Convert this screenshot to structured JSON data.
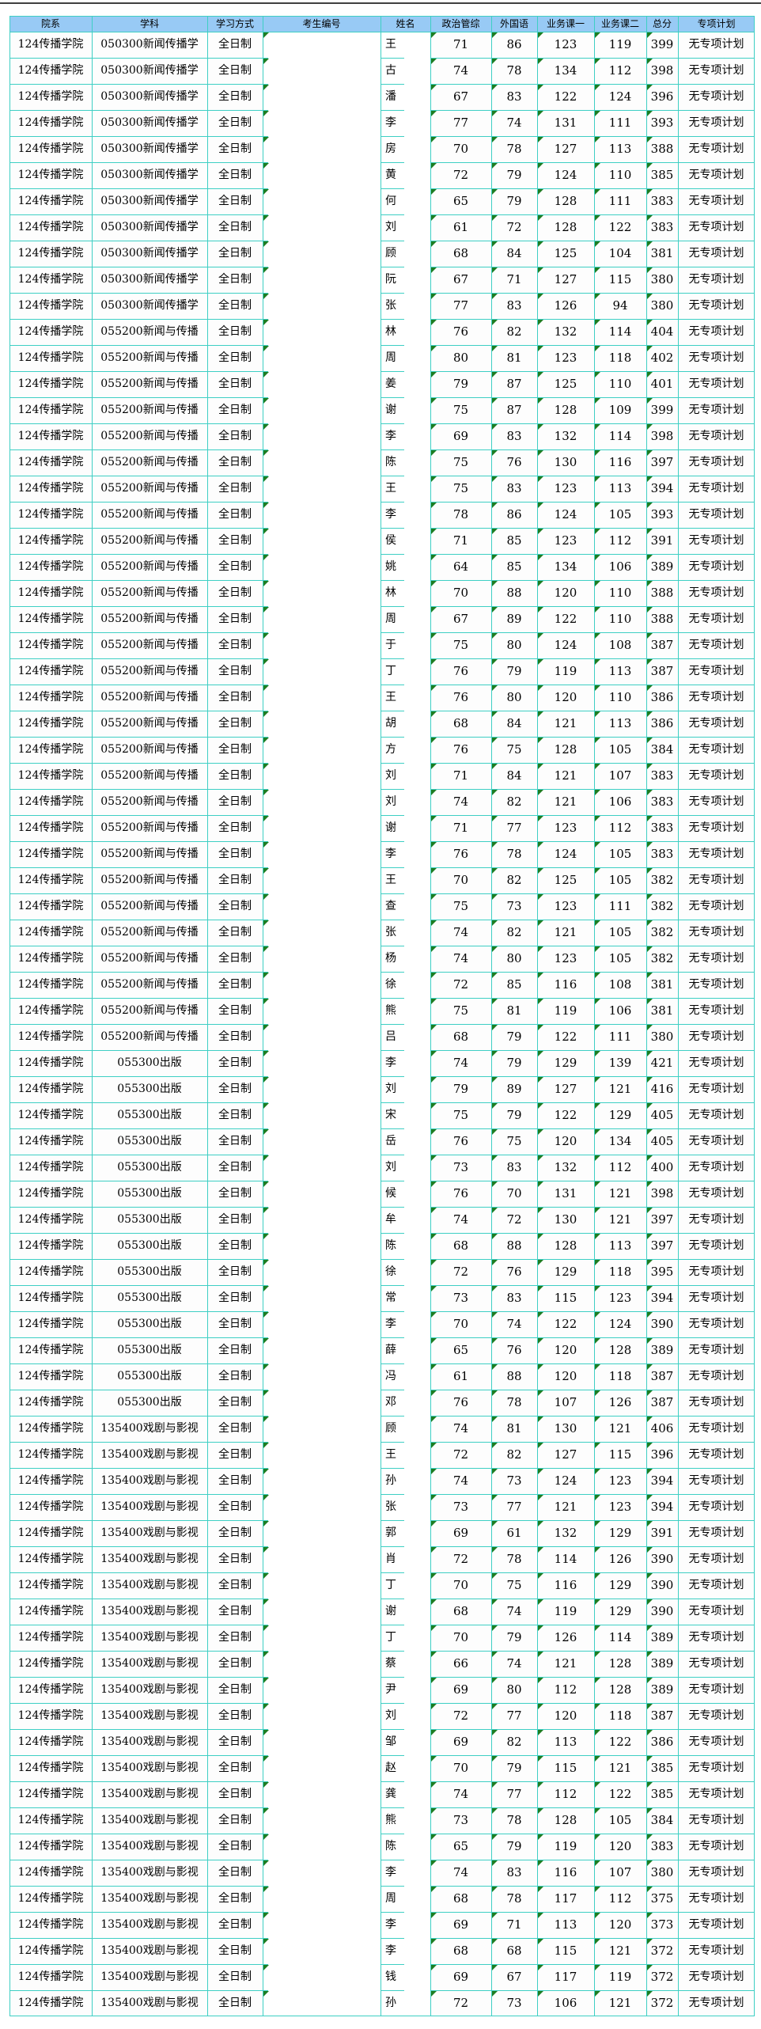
{
  "page": {
    "description_note": "Graduate admission score list, Excel-style grid",
    "colors": {
      "header_bg": "#98caf5",
      "grid_line": "#3ecfc4",
      "flag_marker_green": "#1e7d22",
      "top_rule": "#3f3f3f",
      "cell_bg": "#fdfdfd"
    }
  },
  "table": {
    "header": [
      "院系",
      "学科",
      "学习方式",
      "考生编号",
      "姓名",
      "政治管综",
      "外国语",
      "业务课一",
      "业务课二",
      "总分",
      "专项计划"
    ],
    "shared": {
      "dept": "124传播学院",
      "study_mode": "全日制",
      "candidate_no": "",
      "special_plan": "无专项计划"
    },
    "major_blocks": [
      {
        "major": "050300新闻传播学",
        "row_count": 11
      },
      {
        "major": "055200新闻与传播",
        "row_count": 28
      },
      {
        "major": "055300出版",
        "row_count": 14
      },
      {
        "major": "135400戏剧与影视",
        "row_count": 23
      }
    ],
    "rows": [
      [
        "王",
        71,
        86,
        123,
        119,
        399
      ],
      [
        "古",
        74,
        78,
        134,
        112,
        398
      ],
      [
        "潘",
        67,
        83,
        122,
        124,
        396
      ],
      [
        "李",
        77,
        74,
        131,
        111,
        393
      ],
      [
        "房",
        70,
        78,
        127,
        113,
        388
      ],
      [
        "黄",
        72,
        79,
        124,
        110,
        385
      ],
      [
        "何",
        65,
        79,
        128,
        111,
        383
      ],
      [
        "刘",
        61,
        72,
        128,
        122,
        383
      ],
      [
        "顾",
        68,
        84,
        125,
        104,
        381
      ],
      [
        "阮",
        67,
        71,
        127,
        115,
        380
      ],
      [
        "张",
        77,
        83,
        126,
        94,
        380
      ],
      [
        "林",
        76,
        82,
        132,
        114,
        404
      ],
      [
        "周",
        80,
        81,
        123,
        118,
        402
      ],
      [
        "姜",
        79,
        87,
        125,
        110,
        401
      ],
      [
        "谢",
        75,
        87,
        128,
        109,
        399
      ],
      [
        "李",
        69,
        83,
        132,
        114,
        398
      ],
      [
        "陈",
        75,
        76,
        130,
        116,
        397
      ],
      [
        "王",
        75,
        83,
        123,
        113,
        394
      ],
      [
        "李",
        78,
        86,
        124,
        105,
        393
      ],
      [
        "侯",
        71,
        85,
        123,
        112,
        391
      ],
      [
        "姚",
        64,
        85,
        134,
        106,
        389
      ],
      [
        "林",
        70,
        88,
        120,
        110,
        388
      ],
      [
        "周",
        67,
        89,
        122,
        110,
        388
      ],
      [
        "于",
        75,
        80,
        124,
        108,
        387
      ],
      [
        "丁",
        76,
        79,
        119,
        113,
        387
      ],
      [
        "王",
        76,
        80,
        120,
        110,
        386
      ],
      [
        "胡",
        68,
        84,
        121,
        113,
        386
      ],
      [
        "方",
        76,
        75,
        128,
        105,
        384
      ],
      [
        "刘",
        71,
        84,
        121,
        107,
        383
      ],
      [
        "刘",
        74,
        82,
        121,
        106,
        383
      ],
      [
        "谢",
        71,
        77,
        123,
        112,
        383
      ],
      [
        "李",
        76,
        78,
        124,
        105,
        383
      ],
      [
        "王",
        70,
        82,
        125,
        105,
        382
      ],
      [
        "查",
        75,
        73,
        123,
        111,
        382
      ],
      [
        "张",
        74,
        82,
        121,
        105,
        382
      ],
      [
        "杨",
        74,
        80,
        123,
        105,
        382
      ],
      [
        "徐",
        72,
        85,
        116,
        108,
        381
      ],
      [
        "熊",
        75,
        81,
        119,
        106,
        381
      ],
      [
        "吕",
        68,
        79,
        122,
        111,
        380
      ],
      [
        "李",
        74,
        79,
        129,
        139,
        421
      ],
      [
        "刘",
        79,
        89,
        127,
        121,
        416
      ],
      [
        "宋",
        75,
        79,
        122,
        129,
        405
      ],
      [
        "岳",
        76,
        75,
        120,
        134,
        405
      ],
      [
        "刘",
        73,
        83,
        132,
        112,
        400
      ],
      [
        "候",
        76,
        70,
        131,
        121,
        398
      ],
      [
        "牟",
        74,
        72,
        130,
        121,
        397
      ],
      [
        "陈",
        68,
        88,
        128,
        113,
        397
      ],
      [
        "徐",
        72,
        76,
        129,
        118,
        395
      ],
      [
        "常",
        73,
        83,
        115,
        123,
        394
      ],
      [
        "李",
        70,
        74,
        122,
        124,
        390
      ],
      [
        "薛",
        65,
        76,
        120,
        128,
        389
      ],
      [
        "冯",
        61,
        88,
        120,
        118,
        387
      ],
      [
        "邓",
        76,
        78,
        107,
        126,
        387
      ],
      [
        "顾",
        74,
        81,
        130,
        121,
        406
      ],
      [
        "王",
        72,
        82,
        127,
        115,
        396
      ],
      [
        "孙",
        74,
        73,
        124,
        123,
        394
      ],
      [
        "张",
        73,
        77,
        121,
        123,
        394
      ],
      [
        "郭",
        69,
        61,
        132,
        129,
        391
      ],
      [
        "肖",
        72,
        78,
        114,
        126,
        390
      ],
      [
        "丁",
        70,
        75,
        116,
        129,
        390
      ],
      [
        "谢",
        68,
        74,
        119,
        129,
        390
      ],
      [
        "丁",
        70,
        79,
        126,
        114,
        389
      ],
      [
        "蔡",
        66,
        74,
        121,
        128,
        389
      ],
      [
        "尹",
        69,
        80,
        112,
        128,
        389
      ],
      [
        "刘",
        72,
        77,
        120,
        118,
        387
      ],
      [
        "邹",
        69,
        82,
        113,
        122,
        386
      ],
      [
        "赵",
        70,
        79,
        115,
        121,
        385
      ],
      [
        "龚",
        74,
        77,
        112,
        122,
        385
      ],
      [
        "熊",
        73,
        78,
        128,
        105,
        384
      ],
      [
        "陈",
        65,
        79,
        119,
        120,
        383
      ],
      [
        "李",
        74,
        83,
        116,
        107,
        380
      ],
      [
        "周",
        68,
        78,
        117,
        112,
        375
      ],
      [
        "李",
        69,
        71,
        113,
        120,
        373
      ],
      [
        "李",
        68,
        68,
        115,
        121,
        372
      ],
      [
        "钱",
        69,
        67,
        117,
        119,
        372
      ],
      [
        "孙",
        72,
        73,
        106,
        121,
        372
      ]
    ]
  }
}
